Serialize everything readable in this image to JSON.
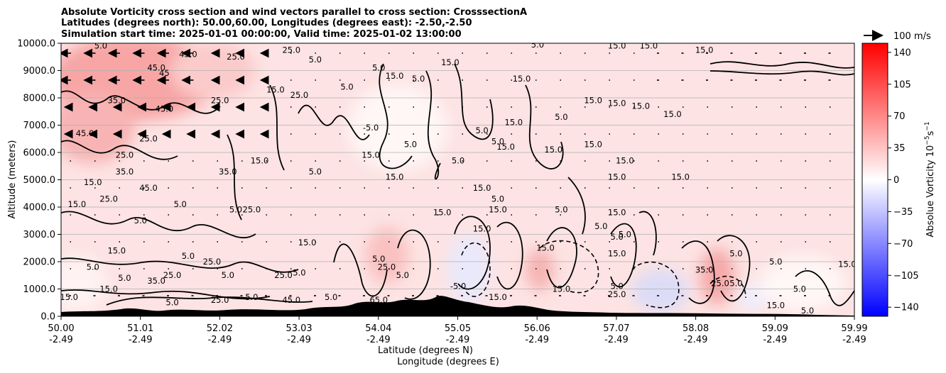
{
  "chart_data": {
    "type": "heatmap",
    "title_lines": [
      "Absolute Vorticity cross section and wind vectors parallel to cross section: CrosssectionA",
      "Latitudes (degrees north): 50.00,60.00, Longitudes (degrees east): -2.50,-2.50",
      "Simulation start time: 2025-01-01 00:00:00, Valid time: 2025-01-02 13:00:00"
    ],
    "ylabel": "Altitude (meters)",
    "xlabel_lat": "Latitude (degrees N)",
    "xlabel_lon": "Longitude (degrees E)",
    "ylim": [
      0,
      10000
    ],
    "yticks": [
      "0.0",
      "1000.0",
      "2000.0",
      "3000.0",
      "4000.0",
      "5000.0",
      "6000.0",
      "7000.0",
      "8000.0",
      "9000.0",
      "10000.0"
    ],
    "xlim": [
      50.0,
      59.99
    ],
    "xticks_lat": [
      "50.00",
      "51.01",
      "52.02",
      "53.03",
      "54.04",
      "55.05",
      "56.06",
      "57.07",
      "58.08",
      "59.09",
      "59.99"
    ],
    "xticks_lon": [
      "-2.49",
      "-2.49",
      "-2.49",
      "-2.49",
      "-2.49",
      "-2.49",
      "-2.49",
      "-2.49",
      "-2.49",
      "-2.49",
      "-2.49"
    ],
    "grid": "horizontal",
    "quiver_key": "100 m/s",
    "colorbar": {
      "label": "Absolue Vorticity 10",
      "label_exponent_unit": "−5",
      "label_unit_s": "s",
      "label_exponent_s": "−1",
      "range": [
        -150,
        150
      ],
      "ticks": [
        "140",
        "105",
        "70",
        "35",
        "0",
        "−35",
        "−70",
        "−105",
        "−140"
      ],
      "colors": [
        "#0000ff",
        "#ffffff",
        "#ff0000"
      ]
    },
    "contour_labels": [
      {
        "x": 50.5,
        "y": 9800,
        "text": "5.0"
      },
      {
        "x": 51.6,
        "y": 9500,
        "text": "45.0"
      },
      {
        "x": 52.2,
        "y": 9400,
        "text": "25.0"
      },
      {
        "x": 52.9,
        "y": 9650,
        "text": "25.0"
      },
      {
        "x": 53.2,
        "y": 9300,
        "text": "5.0"
      },
      {
        "x": 54.9,
        "y": 9200,
        "text": "15.0"
      },
      {
        "x": 56.0,
        "y": 9850,
        "text": "5.0"
      },
      {
        "x": 57.0,
        "y": 9800,
        "text": "15.0"
      },
      {
        "x": 57.4,
        "y": 9800,
        "text": "15.0"
      },
      {
        "x": 58.1,
        "y": 9650,
        "text": "15.0"
      },
      {
        "x": 51.2,
        "y": 9000,
        "text": "45.0"
      },
      {
        "x": 51.3,
        "y": 8800,
        "text": "45"
      },
      {
        "x": 52.7,
        "y": 8200,
        "text": "15.0"
      },
      {
        "x": 53.0,
        "y": 8000,
        "text": "25.0"
      },
      {
        "x": 53.6,
        "y": 8300,
        "text": "5.0"
      },
      {
        "x": 54.0,
        "y": 9000,
        "text": "5.0"
      },
      {
        "x": 54.2,
        "y": 8700,
        "text": "15.0"
      },
      {
        "x": 54.5,
        "y": 8600,
        "text": "5.0"
      },
      {
        "x": 55.8,
        "y": 8600,
        "text": "15.0"
      },
      {
        "x": 56.7,
        "y": 7800,
        "text": "15.0"
      },
      {
        "x": 57.0,
        "y": 7700,
        "text": "15.0"
      },
      {
        "x": 57.3,
        "y": 7600,
        "text": "15.0"
      },
      {
        "x": 57.7,
        "y": 7300,
        "text": "15.0"
      },
      {
        "x": 50.7,
        "y": 7800,
        "text": "35.0"
      },
      {
        "x": 51.3,
        "y": 7500,
        "text": "45.0"
      },
      {
        "x": 52.0,
        "y": 7800,
        "text": "25.0"
      },
      {
        "x": 53.9,
        "y": 6800,
        "text": "-5.0"
      },
      {
        "x": 55.7,
        "y": 7000,
        "text": "15.0"
      },
      {
        "x": 56.3,
        "y": 7200,
        "text": "5.0"
      },
      {
        "x": 55.3,
        "y": 6700,
        "text": "5.0"
      },
      {
        "x": 55.5,
        "y": 6300,
        "text": "5.0"
      },
      {
        "x": 50.3,
        "y": 6600,
        "text": "45.0"
      },
      {
        "x": 51.1,
        "y": 6400,
        "text": "25.0"
      },
      {
        "x": 52.5,
        "y": 5600,
        "text": "15.0"
      },
      {
        "x": 53.9,
        "y": 5800,
        "text": "15.0"
      },
      {
        "x": 54.4,
        "y": 6200,
        "text": "5.0"
      },
      {
        "x": 55.0,
        "y": 5600,
        "text": "5.0"
      },
      {
        "x": 55.6,
        "y": 6100,
        "text": "15.0"
      },
      {
        "x": 56.2,
        "y": 6000,
        "text": "15.0"
      },
      {
        "x": 56.7,
        "y": 6200,
        "text": "15.0"
      },
      {
        "x": 57.1,
        "y": 5600,
        "text": "15.0"
      },
      {
        "x": 50.8,
        "y": 5800,
        "text": "25.0"
      },
      {
        "x": 50.8,
        "y": 5200,
        "text": "35.0"
      },
      {
        "x": 52.1,
        "y": 5200,
        "text": "35.0"
      },
      {
        "x": 53.2,
        "y": 5200,
        "text": "5.0"
      },
      {
        "x": 54.2,
        "y": 5000,
        "text": "15.0"
      },
      {
        "x": 57.0,
        "y": 5000,
        "text": "15.0"
      },
      {
        "x": 57.8,
        "y": 5000,
        "text": "15.0"
      },
      {
        "x": 50.4,
        "y": 4800,
        "text": "15.0"
      },
      {
        "x": 51.1,
        "y": 4600,
        "text": "45.0"
      },
      {
        "x": 55.3,
        "y": 4600,
        "text": "15.0"
      },
      {
        "x": 55.5,
        "y": 4200,
        "text": "5.0"
      },
      {
        "x": 50.6,
        "y": 4200,
        "text": "25.0"
      },
      {
        "x": 51.5,
        "y": 4000,
        "text": "5.0"
      },
      {
        "x": 52.2,
        "y": 3800,
        "text": "5.0"
      },
      {
        "x": 52.4,
        "y": 3800,
        "text": "25.0"
      },
      {
        "x": 50.2,
        "y": 4000,
        "text": "15.0"
      },
      {
        "x": 54.8,
        "y": 3700,
        "text": "15.0"
      },
      {
        "x": 55.5,
        "y": 3800,
        "text": "15.0"
      },
      {
        "x": 56.3,
        "y": 3800,
        "text": "5.0"
      },
      {
        "x": 57.0,
        "y": 3700,
        "text": "15.0"
      },
      {
        "x": 51.0,
        "y": 3400,
        "text": "5.0"
      },
      {
        "x": 53.1,
        "y": 2600,
        "text": "15.0"
      },
      {
        "x": 55.3,
        "y": 3100,
        "text": "15.0"
      },
      {
        "x": 56.8,
        "y": 3200,
        "text": "5.0"
      },
      {
        "x": 57.0,
        "y": 2800,
        "text": "5.0"
      },
      {
        "x": 57.1,
        "y": 2900,
        "text": "5.0"
      },
      {
        "x": 58.5,
        "y": 2200,
        "text": "5.0"
      },
      {
        "x": 50.7,
        "y": 2300,
        "text": "15.0"
      },
      {
        "x": 51.6,
        "y": 2100,
        "text": "5.0"
      },
      {
        "x": 51.9,
        "y": 1900,
        "text": "25.0"
      },
      {
        "x": 52.1,
        "y": 1400,
        "text": "5.0"
      },
      {
        "x": 53.0,
        "y": 1500,
        "text": "5.0"
      },
      {
        "x": 54.0,
        "y": 2000,
        "text": "5.0"
      },
      {
        "x": 54.1,
        "y": 1700,
        "text": "25.0"
      },
      {
        "x": 56.1,
        "y": 2400,
        "text": "15.0"
      },
      {
        "x": 57.0,
        "y": 2200,
        "text": "15.0"
      },
      {
        "x": 58.1,
        "y": 1600,
        "text": "35.0"
      },
      {
        "x": 59.0,
        "y": 1900,
        "text": "5.0"
      },
      {
        "x": 59.9,
        "y": 1800,
        "text": "15.0"
      },
      {
        "x": 50.4,
        "y": 1700,
        "text": "5.0"
      },
      {
        "x": 50.8,
        "y": 1300,
        "text": "5.0"
      },
      {
        "x": 51.2,
        "y": 1200,
        "text": "35.0"
      },
      {
        "x": 51.4,
        "y": 1400,
        "text": "25.0"
      },
      {
        "x": 52.8,
        "y": 1400,
        "text": "25.0"
      },
      {
        "x": 54.3,
        "y": 1400,
        "text": "5.0"
      },
      {
        "x": 55.0,
        "y": 1000,
        "text": "-5.0"
      },
      {
        "x": 56.3,
        "y": 900,
        "text": "15.0"
      },
      {
        "x": 57.0,
        "y": 1000,
        "text": "5.0"
      },
      {
        "x": 57.0,
        "y": 700,
        "text": "25.0"
      },
      {
        "x": 58.3,
        "y": 1100,
        "text": "25.0"
      },
      {
        "x": 58.5,
        "y": 1100,
        "text": "5.0"
      },
      {
        "x": 59.3,
        "y": 900,
        "text": "5.0"
      },
      {
        "x": 50.1,
        "y": 600,
        "text": "15.0"
      },
      {
        "x": 50.6,
        "y": 900,
        "text": "15.0"
      },
      {
        "x": 51.4,
        "y": 400,
        "text": "5.0"
      },
      {
        "x": 52.0,
        "y": 500,
        "text": "25.0"
      },
      {
        "x": 52.4,
        "y": 600,
        "text": "5.0"
      },
      {
        "x": 52.9,
        "y": 500,
        "text": "45.0"
      },
      {
        "x": 53.4,
        "y": 600,
        "text": "5.0"
      },
      {
        "x": 54.0,
        "y": 500,
        "text": "65.0"
      },
      {
        "x": 55.5,
        "y": 600,
        "text": "15.0"
      },
      {
        "x": 59.0,
        "y": 300,
        "text": "15.0"
      },
      {
        "x": 59.4,
        "y": 100,
        "text": "5.0"
      }
    ]
  }
}
